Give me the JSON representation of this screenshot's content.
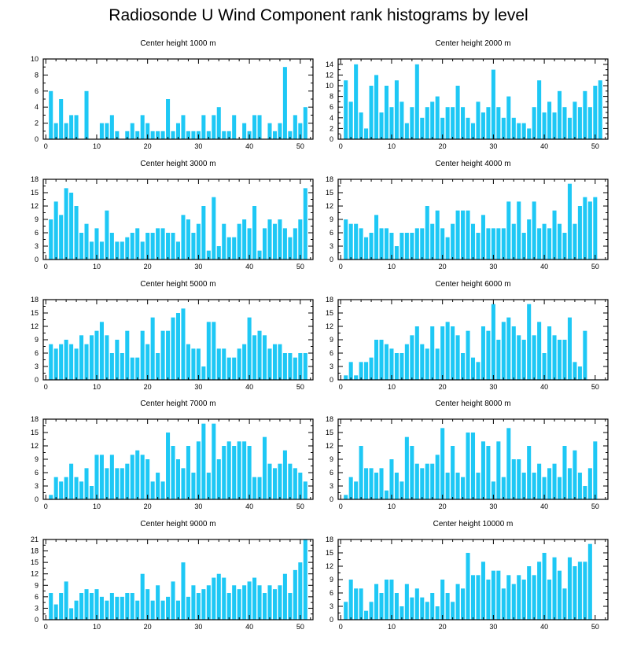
{
  "figure_title": "Radiosonde U Wind Component rank histograms by level",
  "colors": {
    "bar": "#1ec8f5",
    "axis": "#000000",
    "background": "#ffffff"
  },
  "chart_data": [
    {
      "type": "bar",
      "title": "Center height 1000 m",
      "xlabel": "",
      "ylabel": "",
      "xlim": [
        -0.5,
        52.5
      ],
      "ylim": [
        0,
        10
      ],
      "xticks": [
        0,
        10,
        20,
        30,
        40,
        50
      ],
      "yticks": [
        0,
        2,
        4,
        6,
        8,
        10
      ],
      "x": [
        0,
        1,
        2,
        3,
        4,
        5,
        6,
        7,
        8,
        9,
        10,
        11,
        12,
        13,
        14,
        15,
        16,
        17,
        18,
        19,
        20,
        21,
        22,
        23,
        24,
        25,
        26,
        27,
        28,
        29,
        30,
        31,
        32,
        33,
        34,
        35,
        36,
        37,
        38,
        39,
        40,
        41,
        42,
        43,
        44,
        45,
        46,
        47,
        48,
        49,
        50,
        51
      ],
      "values": [
        0,
        6,
        2,
        5,
        2,
        3,
        3,
        0,
        6,
        0,
        0,
        2,
        2,
        3,
        1,
        0,
        1,
        2,
        1,
        3,
        2,
        1,
        1,
        1,
        5,
        1,
        2,
        3,
        1,
        1,
        1,
        3,
        1,
        3,
        4,
        1,
        1,
        3,
        0,
        2,
        1,
        3,
        3,
        0,
        2,
        1,
        2,
        9,
        1,
        3,
        2,
        4
      ]
    },
    {
      "type": "bar",
      "title": "Center height 2000 m",
      "xlabel": "",
      "ylabel": "",
      "xlim": [
        -0.5,
        52.5
      ],
      "ylim": [
        0,
        15
      ],
      "xticks": [
        0,
        10,
        20,
        30,
        40,
        50
      ],
      "yticks": [
        0,
        2,
        4,
        6,
        8,
        10,
        12,
        14
      ],
      "x": [
        0,
        1,
        2,
        3,
        4,
        5,
        6,
        7,
        8,
        9,
        10,
        11,
        12,
        13,
        14,
        15,
        16,
        17,
        18,
        19,
        20,
        21,
        22,
        23,
        24,
        25,
        26,
        27,
        28,
        29,
        30,
        31,
        32,
        33,
        34,
        35,
        36,
        37,
        38,
        39,
        40,
        41,
        42,
        43,
        44,
        45,
        46,
        47,
        48,
        49,
        50,
        51
      ],
      "values": [
        0,
        11,
        7,
        14,
        5,
        2,
        10,
        12,
        5,
        10,
        6,
        11,
        7,
        3,
        6,
        14,
        4,
        6,
        7,
        8,
        4,
        6,
        6,
        10,
        6,
        4,
        3,
        7,
        5,
        6,
        13,
        6,
        4,
        8,
        4,
        3,
        3,
        2,
        6,
        11,
        5,
        7,
        5,
        9,
        6,
        4,
        7,
        6,
        9,
        6,
        10,
        11
      ]
    },
    {
      "type": "bar",
      "title": "Center height 3000 m",
      "xlabel": "",
      "ylabel": "",
      "xlim": [
        -0.5,
        52.5
      ],
      "ylim": [
        0,
        18
      ],
      "xticks": [
        0,
        10,
        20,
        30,
        40,
        50
      ],
      "yticks": [
        0,
        3,
        6,
        9,
        12,
        15,
        18
      ],
      "x": [
        0,
        1,
        2,
        3,
        4,
        5,
        6,
        7,
        8,
        9,
        10,
        11,
        12,
        13,
        14,
        15,
        16,
        17,
        18,
        19,
        20,
        21,
        22,
        23,
        24,
        25,
        26,
        27,
        28,
        29,
        30,
        31,
        32,
        33,
        34,
        35,
        36,
        37,
        38,
        39,
        40,
        41,
        42,
        43,
        44,
        45,
        46,
        47,
        48,
        49,
        50,
        51
      ],
      "values": [
        0,
        9,
        13,
        10,
        16,
        15,
        12,
        6,
        8,
        4,
        7,
        4,
        11,
        6,
        4,
        4,
        5,
        6,
        7,
        4,
        6,
        6,
        7,
        7,
        6,
        6,
        4,
        10,
        9,
        6,
        8,
        12,
        2,
        14,
        3,
        8,
        5,
        5,
        8,
        9,
        7,
        12,
        2,
        7,
        9,
        8,
        9,
        7,
        5,
        7,
        9,
        16
      ]
    },
    {
      "type": "bar",
      "title": "Center height 4000 m",
      "xlabel": "",
      "ylabel": "",
      "xlim": [
        -0.5,
        52.5
      ],
      "ylim": [
        0,
        18
      ],
      "xticks": [
        0,
        10,
        20,
        30,
        40,
        50
      ],
      "yticks": [
        0,
        3,
        6,
        9,
        12,
        15,
        18
      ],
      "x": [
        0,
        1,
        2,
        3,
        4,
        5,
        6,
        7,
        8,
        9,
        10,
        11,
        12,
        13,
        14,
        15,
        16,
        17,
        18,
        19,
        20,
        21,
        22,
        23,
        24,
        25,
        26,
        27,
        28,
        29,
        30,
        31,
        32,
        33,
        34,
        35,
        36,
        37,
        38,
        39,
        40,
        41,
        42,
        43,
        44,
        45,
        46,
        47,
        48,
        49,
        50,
        51
      ],
      "values": [
        0,
        9,
        8,
        8,
        7,
        5,
        6,
        10,
        7,
        7,
        6,
        3,
        6,
        6,
        6,
        7,
        7,
        12,
        8,
        11,
        7,
        5,
        8,
        11,
        11,
        11,
        8,
        6,
        10,
        7,
        7,
        7,
        7,
        13,
        8,
        13,
        6,
        9,
        13,
        7,
        8,
        7,
        11,
        8,
        6,
        17,
        8,
        12,
        14,
        13,
        14,
        0
      ]
    },
    {
      "type": "bar",
      "title": "Center height 5000 m",
      "xlabel": "",
      "ylabel": "",
      "xlim": [
        -0.5,
        52.5
      ],
      "ylim": [
        0,
        18
      ],
      "xticks": [
        0,
        10,
        20,
        30,
        40,
        50
      ],
      "yticks": [
        0,
        3,
        6,
        9,
        12,
        15,
        18
      ],
      "x": [
        0,
        1,
        2,
        3,
        4,
        5,
        6,
        7,
        8,
        9,
        10,
        11,
        12,
        13,
        14,
        15,
        16,
        17,
        18,
        19,
        20,
        21,
        22,
        23,
        24,
        25,
        26,
        27,
        28,
        29,
        30,
        31,
        32,
        33,
        34,
        35,
        36,
        37,
        38,
        39,
        40,
        41,
        42,
        43,
        44,
        45,
        46,
        47,
        48,
        49,
        50,
        51
      ],
      "values": [
        0,
        8,
        7,
        8,
        9,
        8,
        7,
        10,
        8,
        10,
        11,
        13,
        10,
        6,
        9,
        6,
        11,
        5,
        5,
        11,
        8,
        14,
        6,
        11,
        11,
        14,
        15,
        16,
        8,
        7,
        7,
        3,
        13,
        13,
        7,
        7,
        5,
        5,
        7,
        8,
        14,
        10,
        11,
        10,
        7,
        8,
        8,
        6,
        6,
        5,
        6,
        6
      ]
    },
    {
      "type": "bar",
      "title": "Center height 6000 m",
      "xlabel": "",
      "ylabel": "",
      "xlim": [
        -0.5,
        52.5
      ],
      "ylim": [
        0,
        18
      ],
      "xticks": [
        0,
        10,
        20,
        30,
        40,
        50
      ],
      "yticks": [
        0,
        3,
        6,
        9,
        12,
        15,
        18
      ],
      "x": [
        0,
        1,
        2,
        3,
        4,
        5,
        6,
        7,
        8,
        9,
        10,
        11,
        12,
        13,
        14,
        15,
        16,
        17,
        18,
        19,
        20,
        21,
        22,
        23,
        24,
        25,
        26,
        27,
        28,
        29,
        30,
        31,
        32,
        33,
        34,
        35,
        36,
        37,
        38,
        39,
        40,
        41,
        42,
        43,
        44,
        45,
        46,
        47,
        48,
        49,
        50,
        51
      ],
      "values": [
        0,
        1,
        4,
        1,
        4,
        4,
        5,
        9,
        9,
        8,
        7,
        6,
        6,
        8,
        10,
        12,
        8,
        7,
        12,
        7,
        12,
        13,
        12,
        10,
        6,
        11,
        5,
        4,
        12,
        11,
        17,
        9,
        13,
        14,
        12,
        10,
        9,
        17,
        10,
        13,
        6,
        12,
        10,
        9,
        9,
        14,
        4,
        3,
        11,
        0,
        0,
        0
      ]
    },
    {
      "type": "bar",
      "title": "Center height 7000 m",
      "xlabel": "",
      "ylabel": "",
      "xlim": [
        -0.5,
        52.5
      ],
      "ylim": [
        0,
        18
      ],
      "xticks": [
        0,
        10,
        20,
        30,
        40,
        50
      ],
      "yticks": [
        0,
        3,
        6,
        9,
        12,
        15,
        18
      ],
      "x": [
        0,
        1,
        2,
        3,
        4,
        5,
        6,
        7,
        8,
        9,
        10,
        11,
        12,
        13,
        14,
        15,
        16,
        17,
        18,
        19,
        20,
        21,
        22,
        23,
        24,
        25,
        26,
        27,
        28,
        29,
        30,
        31,
        32,
        33,
        34,
        35,
        36,
        37,
        38,
        39,
        40,
        41,
        42,
        43,
        44,
        45,
        46,
        47,
        48,
        49,
        50,
        51
      ],
      "values": [
        0,
        1,
        5,
        4,
        5,
        8,
        5,
        4,
        7,
        3,
        10,
        10,
        7,
        10,
        7,
        7,
        8,
        10,
        11,
        10,
        9,
        4,
        6,
        4,
        15,
        12,
        9,
        7,
        12,
        6,
        13,
        17,
        6,
        17,
        9,
        12,
        13,
        12,
        13,
        13,
        12,
        5,
        5,
        14,
        8,
        7,
        8,
        11,
        8,
        7,
        6,
        4
      ]
    },
    {
      "type": "bar",
      "title": "Center height 8000 m",
      "xlabel": "",
      "ylabel": "",
      "xlim": [
        -0.5,
        52.5
      ],
      "ylim": [
        0,
        18
      ],
      "xticks": [
        0,
        10,
        20,
        30,
        40,
        50
      ],
      "yticks": [
        0,
        3,
        6,
        9,
        12,
        15,
        18
      ],
      "x": [
        0,
        1,
        2,
        3,
        4,
        5,
        6,
        7,
        8,
        9,
        10,
        11,
        12,
        13,
        14,
        15,
        16,
        17,
        18,
        19,
        20,
        21,
        22,
        23,
        24,
        25,
        26,
        27,
        28,
        29,
        30,
        31,
        32,
        33,
        34,
        35,
        36,
        37,
        38,
        39,
        40,
        41,
        42,
        43,
        44,
        45,
        46,
        47,
        48,
        49,
        50,
        51
      ],
      "values": [
        0,
        1,
        5,
        4,
        12,
        7,
        7,
        6,
        7,
        2,
        9,
        6,
        4,
        14,
        12,
        8,
        7,
        8,
        8,
        10,
        16,
        6,
        12,
        6,
        5,
        15,
        15,
        6,
        13,
        12,
        4,
        13,
        5,
        16,
        9,
        9,
        6,
        12,
        6,
        8,
        5,
        7,
        8,
        5,
        12,
        7,
        11,
        6,
        3,
        7,
        13,
        0
      ]
    },
    {
      "type": "bar",
      "title": "Center height 9000 m",
      "xlabel": "",
      "ylabel": "",
      "xlim": [
        -0.5,
        52.5
      ],
      "ylim": [
        0,
        21
      ],
      "xticks": [
        0,
        10,
        20,
        30,
        40,
        50
      ],
      "yticks": [
        0,
        3,
        6,
        9,
        12,
        15,
        18,
        21
      ],
      "x": [
        0,
        1,
        2,
        3,
        4,
        5,
        6,
        7,
        8,
        9,
        10,
        11,
        12,
        13,
        14,
        15,
        16,
        17,
        18,
        19,
        20,
        21,
        22,
        23,
        24,
        25,
        26,
        27,
        28,
        29,
        30,
        31,
        32,
        33,
        34,
        35,
        36,
        37,
        38,
        39,
        40,
        41,
        42,
        43,
        44,
        45,
        46,
        47,
        48,
        49,
        50,
        51
      ],
      "values": [
        0,
        7,
        4,
        7,
        10,
        3,
        5,
        7,
        8,
        7,
        8,
        6,
        5,
        7,
        6,
        6,
        7,
        7,
        5,
        12,
        8,
        5,
        9,
        5,
        6,
        10,
        5,
        15,
        6,
        9,
        7,
        8,
        9,
        11,
        12,
        11,
        7,
        9,
        8,
        9,
        10,
        11,
        9,
        7,
        9,
        8,
        9,
        12,
        7,
        13,
        15,
        21
      ]
    },
    {
      "type": "bar",
      "title": "Center height 10000 m",
      "xlabel": "",
      "ylabel": "",
      "xlim": [
        -0.5,
        52.5
      ],
      "ylim": [
        0,
        18
      ],
      "xticks": [
        0,
        10,
        20,
        30,
        40,
        50
      ],
      "yticks": [
        0,
        3,
        6,
        9,
        12,
        15,
        18
      ],
      "x": [
        0,
        1,
        2,
        3,
        4,
        5,
        6,
        7,
        8,
        9,
        10,
        11,
        12,
        13,
        14,
        15,
        16,
        17,
        18,
        19,
        20,
        21,
        22,
        23,
        24,
        25,
        26,
        27,
        28,
        29,
        30,
        31,
        32,
        33,
        34,
        35,
        36,
        37,
        38,
        39,
        40,
        41,
        42,
        43,
        44,
        45,
        46,
        47,
        48,
        49,
        50,
        51
      ],
      "values": [
        0,
        4,
        9,
        7,
        7,
        2,
        4,
        8,
        6,
        9,
        9,
        6,
        3,
        8,
        5,
        7,
        5,
        4,
        6,
        3,
        9,
        6,
        4,
        8,
        7,
        15,
        10,
        10,
        13,
        9,
        11,
        11,
        7,
        10,
        8,
        10,
        9,
        12,
        10,
        13,
        15,
        9,
        14,
        11,
        7,
        14,
        12,
        13,
        13,
        17,
        0,
        0
      ]
    }
  ]
}
